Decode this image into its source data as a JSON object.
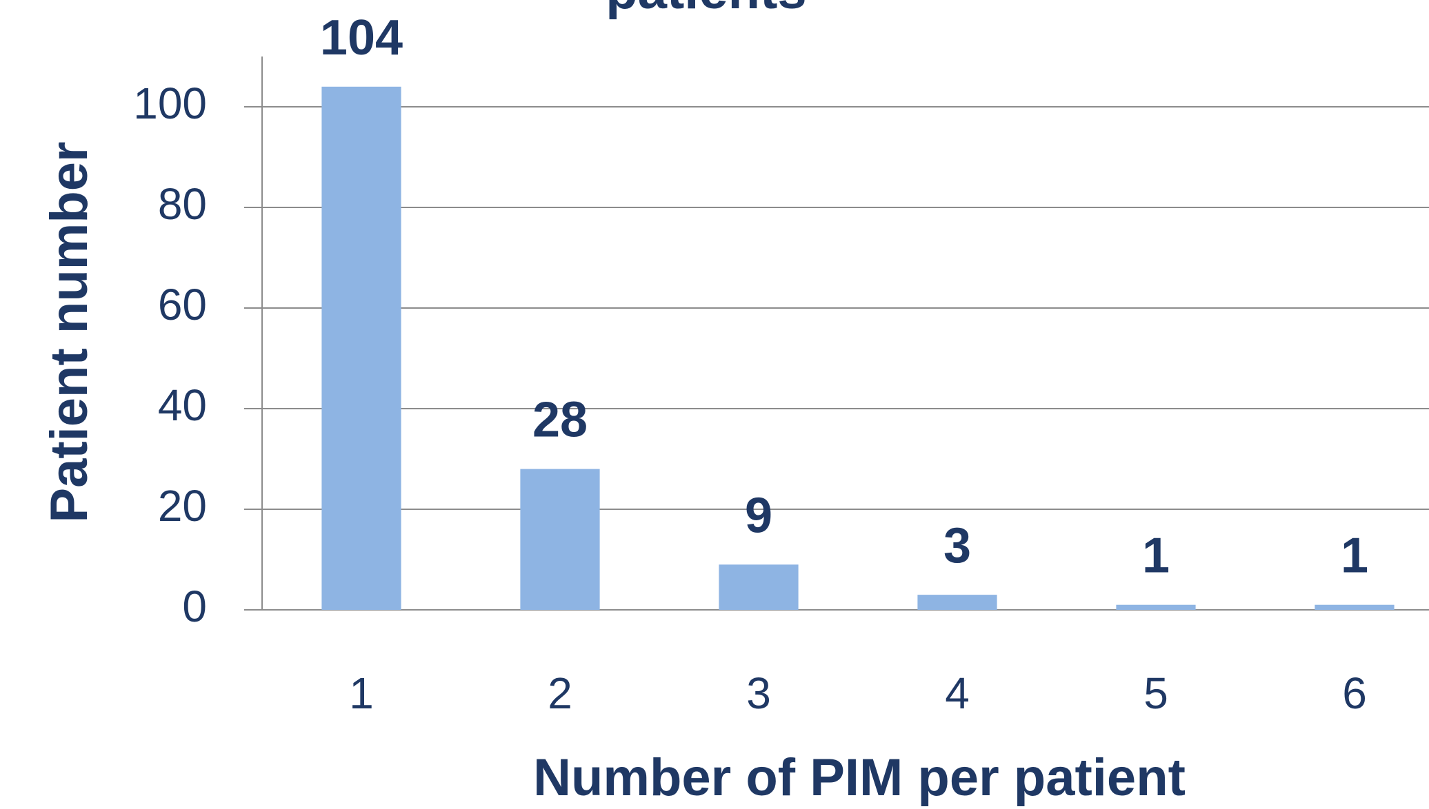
{
  "chart_data": {
    "type": "bar",
    "title": "patients",
    "x_label": "Number of PIM per patient",
    "y_label": "Patient number",
    "categories": [
      "1",
      "2",
      "3",
      "4",
      "5",
      "6"
    ],
    "values": [
      104,
      28,
      9,
      3,
      1,
      1
    ],
    "color": "#8eb4e3",
    "ylim": [
      0,
      110
    ],
    "yticks": [
      0,
      20,
      40,
      60,
      80,
      100
    ],
    "grid": true
  }
}
